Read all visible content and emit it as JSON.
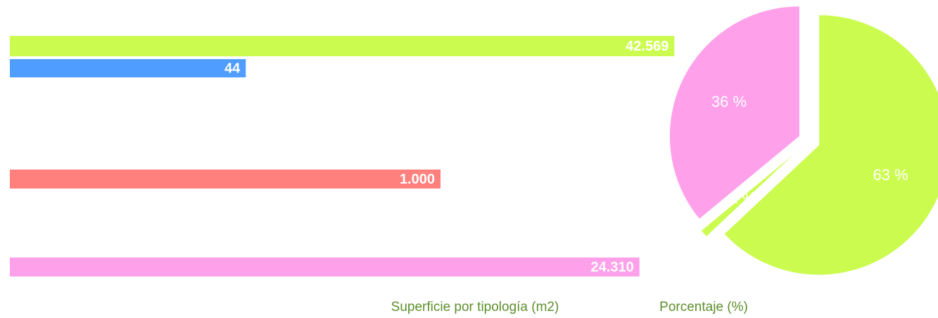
{
  "chart_data": [
    {
      "type": "bar",
      "orientation": "horizontal",
      "log_scale": true,
      "x_label": "Superficie por tipología (m2)",
      "categories": [
        null,
        null,
        null,
        null
      ],
      "values": [
        42569,
        44,
        1000,
        24310
      ],
      "value_labels": [
        "42.569",
        "44",
        "1.000",
        "24.310"
      ],
      "colors": [
        "#ccfb50",
        "#4f9dff",
        "#ff807c",
        "#ffa0ea"
      ],
      "xlim": [
        1,
        100000
      ]
    },
    {
      "type": "pie",
      "title": "Porcentaje (%)",
      "values": [
        63,
        1,
        36
      ],
      "value_labels": [
        "63 %",
        "1 %",
        "36 %"
      ],
      "colors": [
        "#ccfb50",
        "#ccfb50",
        "#ffa0ea"
      ]
    }
  ]
}
